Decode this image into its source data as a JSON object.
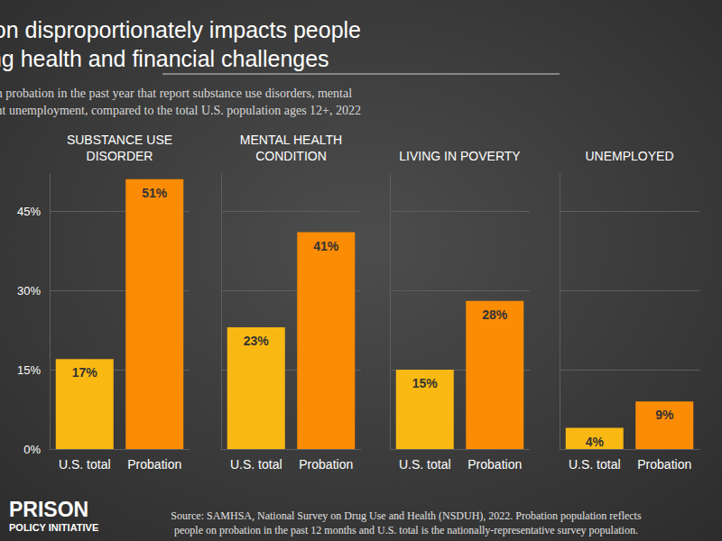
{
  "title": "Probation disproportionately impacts people\nfacing health and financial challenges",
  "subtitle": "Percentage of people who were on probation in the past year that report substance use disorders, mental\nhealth conditions, poverty, or current unemployment, compared to the total U.S. population ages 12+, 2022",
  "source": "Source: SAMHSA, National Survey on Drug Use and Health (NSDUH), 2022. Probation population reflects\npeople on probation in the past 12 months and U.S. total is the nationally-representative survey population.",
  "logo": [
    "PRISON",
    "POLICY INITIATIVE"
  ],
  "chart_data": [
    {
      "type": "bar",
      "title": "SUBSTANCE USE\nDISORDER",
      "categories": [
        "U.S. total",
        "Probation"
      ],
      "values": [
        17,
        51
      ],
      "value_labels": [
        "17%",
        "51%"
      ],
      "colors": [
        "#f9b912",
        "#fd8c05"
      ],
      "ylim": [
        0,
        52
      ],
      "yticks": [
        {
          "value": 0,
          "label": "0%"
        },
        {
          "value": 15,
          "label": "15%"
        },
        {
          "value": 30,
          "label": "30%"
        },
        {
          "value": 45,
          "label": "45%"
        }
      ],
      "grid": true,
      "data_labels": true
    },
    {
      "type": "bar",
      "title": "MENTAL HEALTH\nCONDITION",
      "categories": [
        "U.S. total",
        "Probation"
      ],
      "values": [
        23,
        41
      ],
      "value_labels": [
        "23%",
        "41%"
      ],
      "colors": [
        "#f9b912",
        "#fd8c05"
      ],
      "ylim": [
        0,
        52
      ],
      "yticks": [
        {
          "value": 0,
          "label": "0%"
        },
        {
          "value": 15,
          "label": "15%"
        },
        {
          "value": 30,
          "label": "30%"
        },
        {
          "value": 45,
          "label": "45%"
        }
      ],
      "grid": true,
      "data_labels": true,
      "tick_labels": "x"
    },
    {
      "type": "bar",
      "title": "LIVING IN POVERTY",
      "categories": [
        "U.S. total",
        "Probation"
      ],
      "values": [
        15,
        28
      ],
      "value_labels": [
        "15%",
        "28%"
      ],
      "colors": [
        "#f9b912",
        "#fd8c05"
      ],
      "ylim": [
        0,
        52
      ],
      "yticks": [
        {
          "value": 0,
          "label": "0%"
        },
        {
          "value": 15,
          "label": "15%"
        },
        {
          "value": 30,
          "label": "30%"
        },
        {
          "value": 45,
          "label": "45%"
        }
      ],
      "grid": true,
      "data_labels": true,
      "tick_labels": "x"
    },
    {
      "type": "bar",
      "title": "UNEMPLOYED",
      "categories": [
        "U.S. total",
        "Probation"
      ],
      "values": [
        4,
        9
      ],
      "value_labels": [
        "4%",
        "9%"
      ],
      "colors": [
        "#f9b912",
        "#fd8c05"
      ],
      "ylim": [
        0,
        52
      ],
      "yticks": [
        {
          "value": 0,
          "label": "0%"
        },
        {
          "value": 15,
          "label": "15%"
        },
        {
          "value": 30,
          "label": "30%"
        },
        {
          "value": 45,
          "label": "45%"
        }
      ],
      "grid": true,
      "data_labels": true,
      "tick_labels": "x"
    }
  ]
}
